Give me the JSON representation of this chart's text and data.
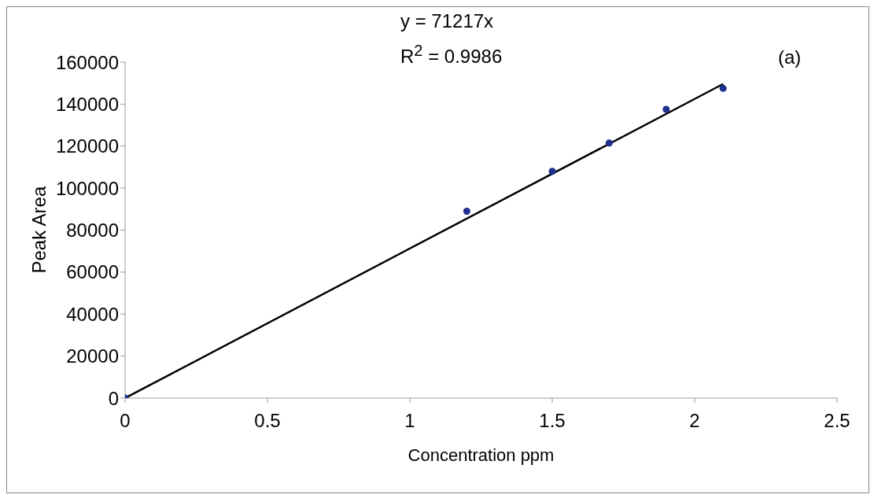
{
  "chart_data": {
    "type": "scatter",
    "xlabel": "Concentration ppm",
    "ylabel": "Peak Area",
    "annotations": [
      "y = 71217x",
      "R$^{2}$ = 0.9986",
      "(a)"
    ],
    "xlim": [
      0,
      2.5
    ],
    "xticks": [
      0,
      0.5,
      1,
      1.5,
      2,
      2.5
    ],
    "ylim": [
      0,
      160000
    ],
    "yticks": [
      0,
      20000,
      40000,
      60000,
      80000,
      100000,
      120000,
      140000,
      160000
    ],
    "grid": false,
    "legend": false,
    "series": [
      {
        "color": "#1f2f8f",
        "marker": "circle",
        "x": [
          0,
          1.2,
          1.5,
          1.7,
          1.9,
          2.1
        ],
        "values": [
          0,
          89000,
          108000,
          121500,
          137500,
          147500
        ]
      },
      {
        "type": "line",
        "color": "#000000",
        "line_style": "solid",
        "marker": "none",
        "x": [
          0,
          2.1
        ],
        "values": [
          0,
          149600
        ]
      }
    ]
  }
}
